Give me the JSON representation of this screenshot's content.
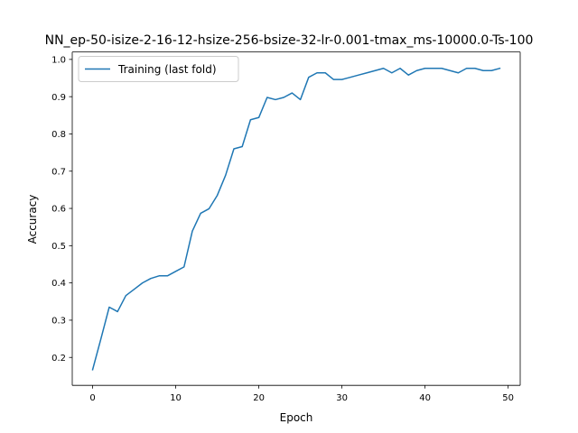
{
  "chart_data": {
    "type": "line",
    "title": "NN_ep-50-isize-2-16-12-hsize-256-bsize-32-lr-0.001-tmax_ms-10000.0-Ts-100",
    "xlabel": "Epoch",
    "ylabel": "Accuracy",
    "xlim": [
      -2.45,
      51.45
    ],
    "ylim": [
      0.125,
      1.02
    ],
    "xticks": [
      0,
      10,
      20,
      30,
      40,
      50
    ],
    "yticks": [
      0.2,
      0.3,
      0.4,
      0.5,
      0.6,
      0.7,
      0.8,
      0.9,
      1.0
    ],
    "xtick_labels": [
      "0",
      "10",
      "20",
      "30",
      "40",
      "50"
    ],
    "ytick_labels": [
      "0.2",
      "0.3",
      "0.4",
      "0.5",
      "0.6",
      "0.7",
      "0.8",
      "0.9",
      "1.0"
    ],
    "grid": false,
    "legend_position": "upper-left",
    "series": [
      {
        "name": "Training (last fold)",
        "color": "#1f77b4",
        "x": [
          0,
          1,
          2,
          3,
          4,
          5,
          6,
          7,
          8,
          9,
          10,
          11,
          12,
          13,
          14,
          15,
          16,
          17,
          18,
          19,
          20,
          21,
          22,
          23,
          24,
          25,
          26,
          27,
          28,
          29,
          30,
          31,
          32,
          33,
          34,
          35,
          36,
          37,
          38,
          39,
          40,
          41,
          42,
          43,
          44,
          45,
          46,
          47,
          48,
          49
        ],
        "y": [
          0.167,
          0.25,
          0.335,
          0.323,
          0.366,
          0.383,
          0.4,
          0.412,
          0.419,
          0.419,
          0.431,
          0.443,
          0.539,
          0.587,
          0.599,
          0.635,
          0.689,
          0.76,
          0.766,
          0.838,
          0.844,
          0.898,
          0.892,
          0.898,
          0.91,
          0.892,
          0.952,
          0.964,
          0.964,
          0.946,
          0.946,
          0.952,
          0.958,
          0.964,
          0.97,
          0.976,
          0.964,
          0.976,
          0.958,
          0.97,
          0.976,
          0.976,
          0.976,
          0.97,
          0.964,
          0.976,
          0.976,
          0.97,
          0.97,
          0.976
        ]
      }
    ]
  }
}
